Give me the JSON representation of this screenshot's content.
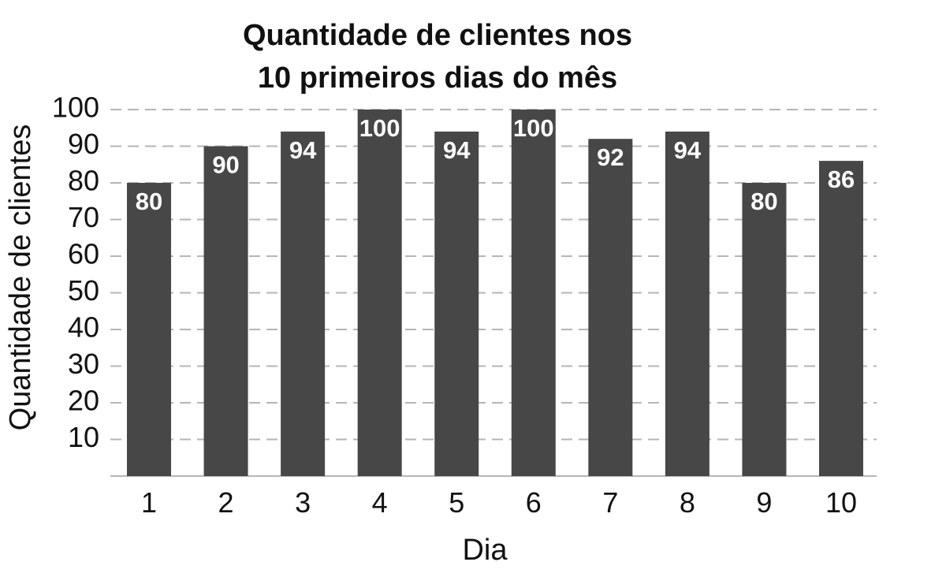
{
  "chart_data": {
    "type": "bar",
    "title_lines": [
      "Quantidade de clientes nos",
      "10 primeiros dias do mês"
    ],
    "xlabel": "Dia",
    "ylabel": "Quantidade de clientes",
    "categories": [
      "1",
      "2",
      "3",
      "4",
      "5",
      "6",
      "7",
      "8",
      "9",
      "10"
    ],
    "values": [
      80,
      90,
      94,
      100,
      94,
      100,
      92,
      94,
      80,
      86
    ],
    "ylim": [
      0,
      100
    ],
    "yticks": [
      10,
      20,
      30,
      40,
      50,
      60,
      70,
      80,
      90,
      100
    ],
    "grid": "horizontal dashed",
    "bar_color": "#474747",
    "label_color": "#ffffff",
    "grid_color": "#b5b5b5"
  }
}
